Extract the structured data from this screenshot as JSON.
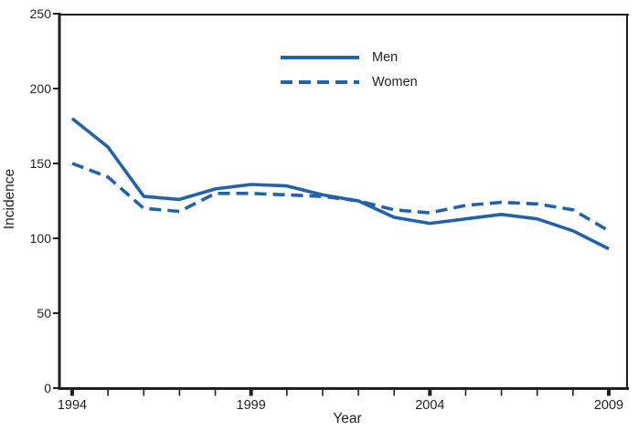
{
  "figure": {
    "background": "#ffffff",
    "text_color": "#231f20",
    "line_color": "#2263a7"
  },
  "chart_data": {
    "type": "line",
    "x": [
      1994,
      1995,
      1996,
      1997,
      1998,
      1999,
      2000,
      2001,
      2002,
      2003,
      2004,
      2005,
      2006,
      2007,
      2008,
      2009
    ],
    "series": [
      {
        "name": "Men",
        "style": "solid",
        "values": [
          180,
          161,
          128,
          126,
          133,
          136,
          135,
          129,
          125,
          114,
          110,
          113,
          116,
          113,
          105,
          93
        ]
      },
      {
        "name": "Women",
        "style": "dashed",
        "values": [
          150,
          141,
          120,
          118,
          130,
          130,
          129,
          128,
          125,
          119,
          117,
          122,
          124,
          123,
          119,
          105
        ]
      }
    ],
    "xlabel": "Year",
    "ylabel": "Incidence",
    "xlim": [
      1994,
      2009
    ],
    "ylim": [
      0,
      250
    ],
    "yticks": [
      0,
      50,
      100,
      150,
      200,
      250
    ],
    "xticks_labeled": [
      1994,
      1999,
      2004,
      2009
    ],
    "grid": false,
    "legend_position": "upper-center"
  }
}
